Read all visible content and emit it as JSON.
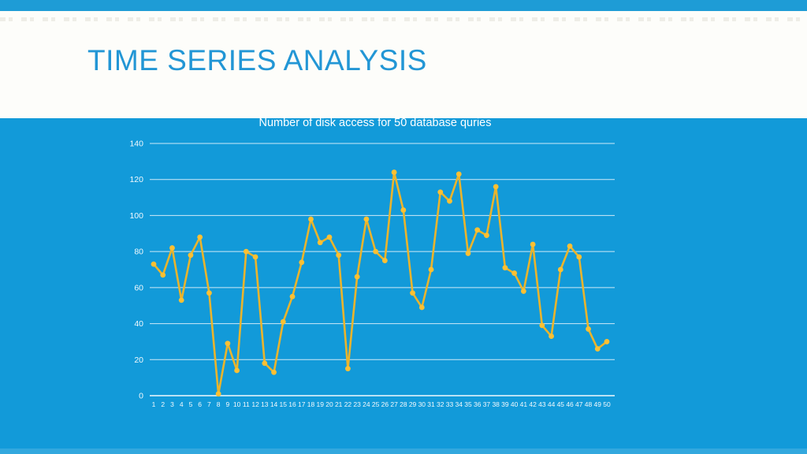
{
  "slide": {
    "title": "TIME SERIES ANALYSIS"
  },
  "chart_data": {
    "type": "line",
    "title": "Number of disk access for 50 database quries",
    "xlabel": "",
    "ylabel": "",
    "x": [
      1,
      2,
      3,
      4,
      5,
      6,
      7,
      8,
      9,
      10,
      11,
      12,
      13,
      14,
      15,
      16,
      17,
      18,
      19,
      20,
      21,
      22,
      23,
      24,
      25,
      26,
      27,
      28,
      29,
      30,
      31,
      32,
      33,
      34,
      35,
      36,
      37,
      38,
      39,
      40,
      41,
      42,
      43,
      44,
      45,
      46,
      47,
      48,
      49,
      50
    ],
    "values": [
      73,
      67,
      82,
      53,
      78,
      88,
      57,
      1,
      29,
      14,
      80,
      77,
      18,
      13,
      41,
      55,
      74,
      98,
      85,
      88,
      78,
      15,
      66,
      98,
      80,
      75,
      124,
      103,
      57,
      49,
      70,
      113,
      108,
      123,
      79,
      92,
      89,
      116,
      71,
      68,
      58,
      84,
      39,
      33,
      70,
      83,
      77,
      37,
      26,
      30
    ],
    "ylim": [
      0,
      140
    ],
    "yticks": [
      0,
      20,
      40,
      60,
      80,
      100,
      120,
      140
    ],
    "grid": true,
    "legend": "none"
  },
  "colors": {
    "background": "#129AD9",
    "accent": "#1E9CD6",
    "band": "#FDFDFA",
    "title_text": "#2296D5",
    "chart_text": "#FFFFFF",
    "gridline": "#FFFFFF",
    "line": "#EAB42C",
    "marker": "#FCC033"
  }
}
